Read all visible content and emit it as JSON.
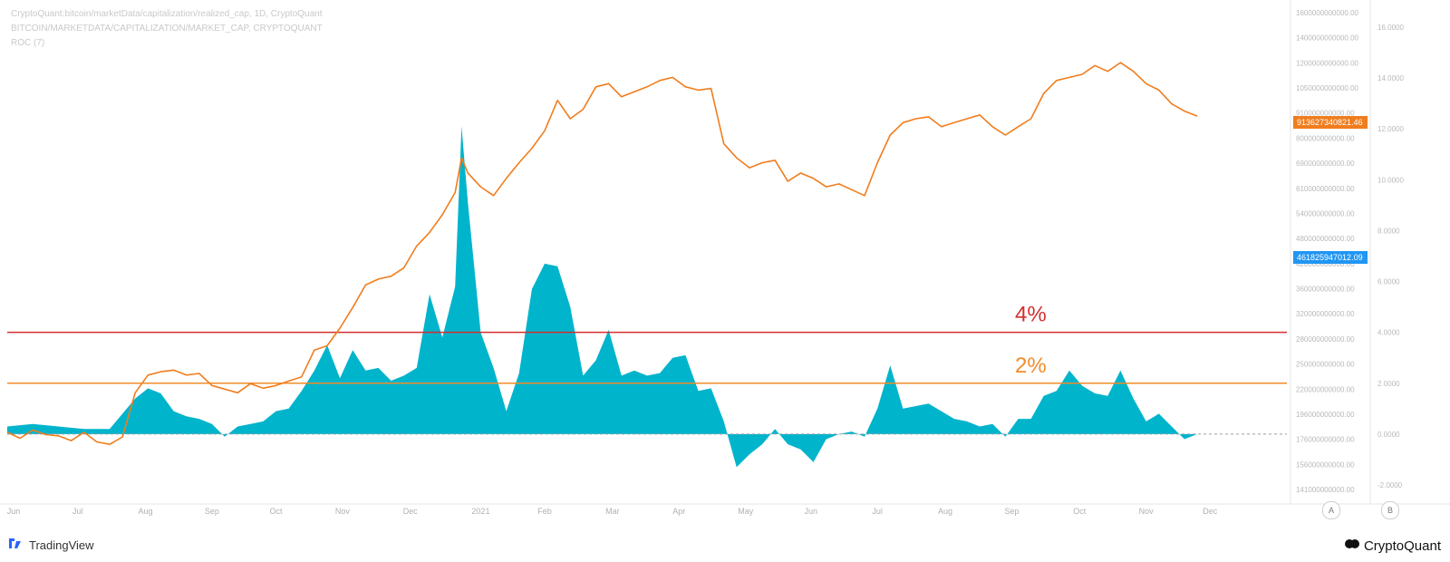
{
  "legend": {
    "line1": "CryptoQuant:bitcoin/marketData/capitalization/realized_cap, 1D, CryptoQuant",
    "line2": "BITCOIN/MARKETDATA/CAPITALIZATION/MARKET_CAP, CRYPTOQUANT",
    "line3": "ROC (7)"
  },
  "footer": {
    "left_brand": "TradingView",
    "right_brand": "CryptoQuant",
    "scale_a": "A",
    "scale_b": "B"
  },
  "colors": {
    "price_line": "#f07d1e",
    "roc_fill": "#00b4cc",
    "line_4pct": "#d32f2f",
    "line_2pct": "#f28c28",
    "price_badge": "#f07d1e",
    "realized_badge": "#2196f3",
    "axis_text": "#b9b9b9",
    "grid_text": "#b0b0b0"
  },
  "chart_data": {
    "type": "line",
    "x_axis": {
      "labels": [
        "Jun",
        "Jul",
        "Aug",
        "Sep",
        "Oct",
        "Nov",
        "Dec",
        "2021",
        "Feb",
        "Mar",
        "Apr",
        "May",
        "Jun",
        "Jul",
        "Aug",
        "Sep",
        "Oct",
        "Nov",
        "Dec"
      ]
    },
    "left_axis": {
      "ticks": [
        "1600000000000.00",
        "1400000000000.00",
        "1200000000000.00",
        "1050000000000.00",
        "910000000000.00",
        "800000000000.00",
        "690000000000.00",
        "610000000000.00",
        "540000000000.00",
        "480000000000.00",
        "420000000000.00",
        "360000000000.00",
        "320000000000.00",
        "280000000000.00",
        "250000000000.00",
        "220000000000.00",
        "196000000000.00",
        "176000000000.00",
        "156000000000.00",
        "141000000000.00"
      ]
    },
    "right_axis": {
      "ticks": [
        "16.0000",
        "14.0000",
        "12.0000",
        "10.0000",
        "8.0000",
        "6.0000",
        "4.0000",
        "2.0000",
        "0.0000",
        "-2.0000"
      ]
    },
    "badges": {
      "price": "913627340821.46",
      "realized": "461825947012.09"
    },
    "thresholds": [
      {
        "label": "4%",
        "value": 4.0
      },
      {
        "label": "2%",
        "value": 2.0
      }
    ],
    "series": [
      {
        "kind": "line",
        "values": [
          [
            0.0,
            150
          ],
          [
            0.01,
            145
          ],
          [
            0.02,
            152
          ],
          [
            0.03,
            148
          ],
          [
            0.04,
            147
          ],
          [
            0.05,
            143
          ],
          [
            0.06,
            150
          ],
          [
            0.07,
            142
          ],
          [
            0.08,
            140
          ],
          [
            0.09,
            146
          ],
          [
            0.1,
            188
          ],
          [
            0.11,
            208
          ],
          [
            0.12,
            212
          ],
          [
            0.13,
            214
          ],
          [
            0.14,
            208
          ],
          [
            0.15,
            210
          ],
          [
            0.16,
            196
          ],
          [
            0.17,
            192
          ],
          [
            0.18,
            188
          ],
          [
            0.19,
            198
          ],
          [
            0.2,
            193
          ],
          [
            0.21,
            196
          ],
          [
            0.22,
            201
          ],
          [
            0.23,
            206
          ],
          [
            0.24,
            240
          ],
          [
            0.25,
            246
          ],
          [
            0.26,
            272
          ],
          [
            0.27,
            306
          ],
          [
            0.28,
            348
          ],
          [
            0.29,
            360
          ],
          [
            0.3,
            366
          ],
          [
            0.31,
            384
          ],
          [
            0.32,
            435
          ],
          [
            0.33,
            470
          ],
          [
            0.34,
            520
          ],
          [
            0.35,
            590
          ],
          [
            0.355,
            720
          ],
          [
            0.36,
            660
          ],
          [
            0.37,
            610
          ],
          [
            0.38,
            580
          ],
          [
            0.39,
            640
          ],
          [
            0.4,
            700
          ],
          [
            0.41,
            760
          ],
          [
            0.42,
            840
          ],
          [
            0.43,
            1000
          ],
          [
            0.44,
            900
          ],
          [
            0.45,
            950
          ],
          [
            0.46,
            1080
          ],
          [
            0.47,
            1100
          ],
          [
            0.48,
            1020
          ],
          [
            0.49,
            1050
          ],
          [
            0.5,
            1080
          ],
          [
            0.51,
            1120
          ],
          [
            0.52,
            1140
          ],
          [
            0.53,
            1080
          ],
          [
            0.54,
            1060
          ],
          [
            0.55,
            1070
          ],
          [
            0.56,
            780
          ],
          [
            0.57,
            720
          ],
          [
            0.58,
            680
          ],
          [
            0.59,
            700
          ],
          [
            0.6,
            710
          ],
          [
            0.61,
            630
          ],
          [
            0.62,
            660
          ],
          [
            0.63,
            640
          ],
          [
            0.64,
            610
          ],
          [
            0.65,
            620
          ],
          [
            0.66,
            600
          ],
          [
            0.67,
            580
          ],
          [
            0.68,
            700
          ],
          [
            0.69,
            820
          ],
          [
            0.7,
            880
          ],
          [
            0.71,
            900
          ],
          [
            0.72,
            910
          ],
          [
            0.73,
            860
          ],
          [
            0.74,
            880
          ],
          [
            0.75,
            900
          ],
          [
            0.76,
            920
          ],
          [
            0.77,
            860
          ],
          [
            0.78,
            820
          ],
          [
            0.79,
            860
          ],
          [
            0.8,
            900
          ],
          [
            0.81,
            1040
          ],
          [
            0.82,
            1120
          ],
          [
            0.83,
            1140
          ],
          [
            0.84,
            1160
          ],
          [
            0.85,
            1220
          ],
          [
            0.86,
            1180
          ],
          [
            0.87,
            1240
          ],
          [
            0.88,
            1180
          ],
          [
            0.89,
            1100
          ],
          [
            0.9,
            1060
          ],
          [
            0.91,
            980
          ],
          [
            0.92,
            940
          ],
          [
            0.93,
            913.6
          ]
        ]
      },
      {
        "kind": "area",
        "values": [
          [
            0.0,
            0.3
          ],
          [
            0.02,
            0.4
          ],
          [
            0.04,
            0.3
          ],
          [
            0.06,
            0.2
          ],
          [
            0.08,
            0.2
          ],
          [
            0.1,
            1.4
          ],
          [
            0.11,
            1.8
          ],
          [
            0.12,
            1.6
          ],
          [
            0.13,
            0.9
          ],
          [
            0.14,
            0.7
          ],
          [
            0.15,
            0.6
          ],
          [
            0.16,
            0.4
          ],
          [
            0.17,
            -0.1
          ],
          [
            0.18,
            0.3
          ],
          [
            0.19,
            0.4
          ],
          [
            0.2,
            0.5
          ],
          [
            0.21,
            0.9
          ],
          [
            0.22,
            1.0
          ],
          [
            0.23,
            1.7
          ],
          [
            0.24,
            2.5
          ],
          [
            0.25,
            3.5
          ],
          [
            0.26,
            2.2
          ],
          [
            0.27,
            3.3
          ],
          [
            0.28,
            2.5
          ],
          [
            0.29,
            2.6
          ],
          [
            0.3,
            2.1
          ],
          [
            0.31,
            2.3
          ],
          [
            0.32,
            2.6
          ],
          [
            0.33,
            5.5
          ],
          [
            0.34,
            3.8
          ],
          [
            0.35,
            5.8
          ],
          [
            0.355,
            12.1
          ],
          [
            0.36,
            9.1
          ],
          [
            0.37,
            4.0
          ],
          [
            0.38,
            2.6
          ],
          [
            0.39,
            0.9
          ],
          [
            0.4,
            2.4
          ],
          [
            0.41,
            5.7
          ],
          [
            0.42,
            6.7
          ],
          [
            0.43,
            6.6
          ],
          [
            0.44,
            5.0
          ],
          [
            0.45,
            2.3
          ],
          [
            0.46,
            2.9
          ],
          [
            0.47,
            4.1
          ],
          [
            0.48,
            2.3
          ],
          [
            0.49,
            2.5
          ],
          [
            0.5,
            2.3
          ],
          [
            0.51,
            2.4
          ],
          [
            0.52,
            3.0
          ],
          [
            0.53,
            3.1
          ],
          [
            0.54,
            1.7
          ],
          [
            0.55,
            1.8
          ],
          [
            0.56,
            0.5
          ],
          [
            0.57,
            -1.3
          ],
          [
            0.58,
            -0.8
          ],
          [
            0.59,
            -0.4
          ],
          [
            0.6,
            0.2
          ],
          [
            0.61,
            -0.4
          ],
          [
            0.62,
            -0.6
          ],
          [
            0.63,
            -1.1
          ],
          [
            0.64,
            -0.2
          ],
          [
            0.65,
            0.0
          ],
          [
            0.66,
            0.1
          ],
          [
            0.67,
            -0.1
          ],
          [
            0.68,
            1.0
          ],
          [
            0.69,
            2.7
          ],
          [
            0.7,
            1.0
          ],
          [
            0.71,
            1.1
          ],
          [
            0.72,
            1.2
          ],
          [
            0.73,
            0.9
          ],
          [
            0.74,
            0.6
          ],
          [
            0.75,
            0.5
          ],
          [
            0.76,
            0.3
          ],
          [
            0.77,
            0.4
          ],
          [
            0.78,
            -0.1
          ],
          [
            0.79,
            0.6
          ],
          [
            0.8,
            0.6
          ],
          [
            0.81,
            1.5
          ],
          [
            0.82,
            1.7
          ],
          [
            0.83,
            2.5
          ],
          [
            0.84,
            1.9
          ],
          [
            0.85,
            1.6
          ],
          [
            0.86,
            1.5
          ],
          [
            0.87,
            2.5
          ],
          [
            0.88,
            1.4
          ],
          [
            0.89,
            0.5
          ],
          [
            0.9,
            0.8
          ],
          [
            0.91,
            0.3
          ],
          [
            0.92,
            -0.2
          ],
          [
            0.93,
            0.0
          ]
        ]
      }
    ]
  }
}
